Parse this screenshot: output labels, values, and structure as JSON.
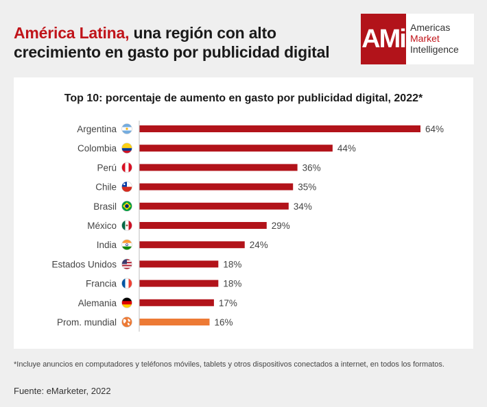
{
  "header": {
    "title_accent": "América Latina,",
    "title_rest": " una región con alto crecimiento en gasto por publicidad digital"
  },
  "logo": {
    "mark": "AMi",
    "line1": "Americas",
    "line2": "Market",
    "line3": "Intelligence"
  },
  "colors": {
    "brand_red": "#c0141a",
    "bar_red": "#b2131a",
    "bar_orange": "#ed7a35"
  },
  "chart_data": {
    "type": "bar",
    "orientation": "horizontal",
    "title": "Top 10: porcentaje de aumento en gasto por publicidad digital, 2022*",
    "categories": [
      "Argentina",
      "Colombia",
      "Perú",
      "Chile",
      "Brasil",
      "México",
      "India",
      "Estados Unidos",
      "Francia",
      "Alemania",
      "Prom. mundial"
    ],
    "values": [
      64,
      44,
      36,
      35,
      34,
      29,
      24,
      18,
      18,
      17,
      16
    ],
    "value_labels": [
      "64%",
      "44%",
      "36%",
      "35%",
      "34%",
      "29%",
      "24%",
      "18%",
      "18%",
      "17%",
      "16%"
    ],
    "highlight": "Prom. mundial",
    "icons": [
      "flag-argentina-icon",
      "flag-colombia-icon",
      "flag-peru-icon",
      "flag-chile-icon",
      "flag-brazil-icon",
      "flag-mexico-icon",
      "flag-india-icon",
      "flag-usa-icon",
      "flag-france-icon",
      "flag-germany-icon",
      "globe-icon"
    ],
    "xlim": [
      0,
      64
    ],
    "grid": false,
    "legend": "none"
  },
  "footnote": "*Incluye anuncios en computadores y teléfonos móviles, tablets y otros dispositivos conectados a internet, en todos los formatos.",
  "source": "Fuente: eMarketer, 2022"
}
